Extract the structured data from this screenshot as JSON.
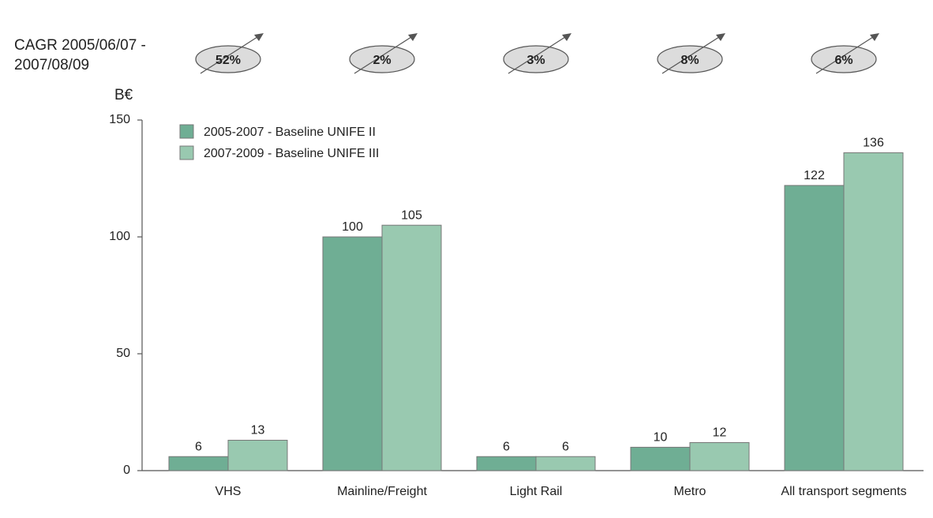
{
  "chart_data": {
    "type": "bar",
    "y_label": "B€",
    "cagr_label": [
      "CAGR 2005/06/07 -",
      "2007/08/09"
    ],
    "cagr": [
      "52%",
      "2%",
      "3%",
      "8%",
      "6%"
    ],
    "categories": [
      "VHS",
      "Mainline/Freight",
      "Light Rail",
      "Metro",
      "All transport segments"
    ],
    "series": [
      {
        "name": "2005-2007 - Baseline UNIFE II",
        "color": "#6fae94",
        "values": [
          6,
          100,
          6,
          10,
          122
        ]
      },
      {
        "name": "2007-2009 - Baseline UNIFE III",
        "color": "#99c9b0",
        "values": [
          13,
          105,
          6,
          12,
          136
        ]
      }
    ],
    "ylim": [
      0,
      150
    ],
    "yticks": [
      0,
      50,
      100,
      150
    ],
    "legend": "upper left"
  }
}
